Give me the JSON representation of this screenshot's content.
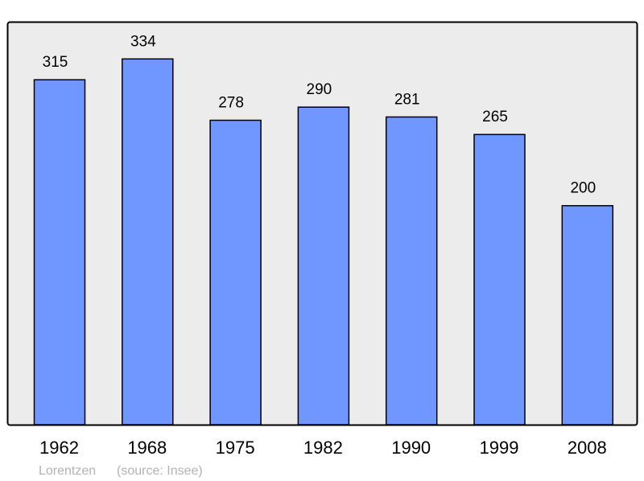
{
  "chart_data": {
    "type": "bar",
    "categories": [
      "1962",
      "1968",
      "1975",
      "1982",
      "1990",
      "1999",
      "2008"
    ],
    "values": [
      315,
      334,
      278,
      290,
      281,
      265,
      200
    ],
    "title": "",
    "xlabel": "",
    "ylabel": "",
    "ylim": [
      0,
      368
    ],
    "grid": false,
    "data_labels": true,
    "colors": {
      "bar": "#7097ff",
      "plot_background": "#ececec",
      "frame": "#000000"
    }
  },
  "footer": {
    "author": "Lorentzen",
    "source": "(source: Insee)"
  }
}
